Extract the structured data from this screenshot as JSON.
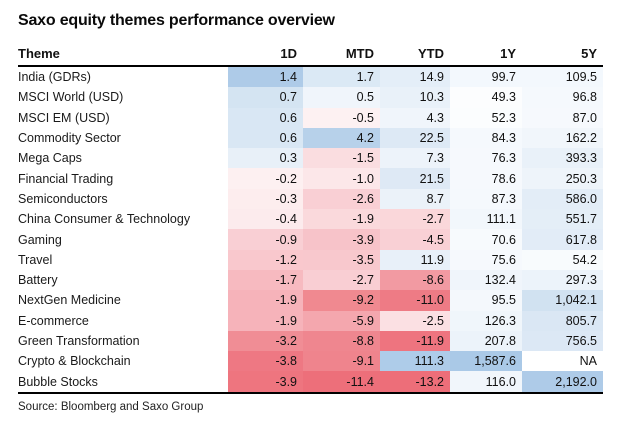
{
  "title": "Saxo equity themes performance overview",
  "source": "Source: Bloomberg and Saxo Group",
  "heatmap_colors": {
    "max_positive": "#aecbe8",
    "max_negative": "#ed6e79",
    "neutral": "#ffffff"
  },
  "table": {
    "header": [
      "Theme",
      "1D",
      "MTD",
      "YTD",
      "1Y",
      "5Y"
    ],
    "rows": [
      {
        "theme": "India (GDRs)",
        "values": [
          "1.4",
          "1.7",
          "14.9",
          "99.7",
          "109.5"
        ],
        "colors": [
          "#aecbe8",
          "#dbe9f5",
          "#e4eef8",
          "#f3f8fd",
          "#f3f8fd"
        ]
      },
      {
        "theme": "MSCI World (USD)",
        "values": [
          "0.7",
          "0.5",
          "10.3",
          "49.3",
          "96.8"
        ],
        "colors": [
          "#d4e4f2",
          "#f0f5fb",
          "#e9f1f9",
          "#fcfdfe",
          "#f5f9fd"
        ]
      },
      {
        "theme": "MSCI EM (USD)",
        "values": [
          "0.6",
          "-0.5",
          "4.3",
          "52.3",
          "87.0"
        ],
        "colors": [
          "#d9e7f4",
          "#fdf1f2",
          "#f0f5fb",
          "#fbfdfe",
          "#f6f9fd"
        ]
      },
      {
        "theme": "Commodity Sector",
        "values": [
          "0.6",
          "4.2",
          "22.5",
          "84.3",
          "162.2"
        ],
        "colors": [
          "#d9e7f4",
          "#b7d1ea",
          "#dde9f5",
          "#f5f9fd",
          "#f1f6fb"
        ]
      },
      {
        "theme": "Mega Caps",
        "values": [
          "0.3",
          "-1.5",
          "7.3",
          "76.3",
          "393.3"
        ],
        "colors": [
          "#e8f0f8",
          "#fadde0",
          "#edf3fa",
          "#f6f9fd",
          "#e9f1f9"
        ]
      },
      {
        "theme": "Financial Trading",
        "values": [
          "-0.2",
          "-1.0",
          "21.5",
          "78.6",
          "250.3"
        ],
        "colors": [
          "#fdf0f1",
          "#fce7e9",
          "#dee9f5",
          "#f6f9fd",
          "#eef4fa"
        ]
      },
      {
        "theme": "Semiconductors",
        "values": [
          "-0.3",
          "-2.6",
          "8.7",
          "87.3",
          "586.0"
        ],
        "colors": [
          "#fdedee",
          "#f9cfd4",
          "#ebf2f9",
          "#f5f9fd",
          "#e3edf7"
        ]
      },
      {
        "theme": "China Consumer & Technology",
        "values": [
          "-0.4",
          "-1.9",
          "-2.7",
          "111.1",
          "551.7"
        ],
        "colors": [
          "#fcebed",
          "#fad9dc",
          "#fad7da",
          "#f2f7fc",
          "#e4eef7"
        ]
      },
      {
        "theme": "Gaming",
        "values": [
          "-0.9",
          "-3.9",
          "-4.5",
          "70.6",
          "617.8"
        ],
        "colors": [
          "#f9cfd4",
          "#f7c3c9",
          "#f9d0d5",
          "#f7fafd",
          "#e2ecf7"
        ]
      },
      {
        "theme": "Travel",
        "values": [
          "-1.2",
          "-3.5",
          "11.9",
          "75.6",
          "54.2"
        ],
        "colors": [
          "#f9c8cd",
          "#f8c8cd",
          "#e8f0f9",
          "#f6f9fd",
          "#f8fbfd"
        ]
      },
      {
        "theme": "Battery",
        "values": [
          "-1.7",
          "-2.7",
          "-8.6",
          "132.4",
          "297.3"
        ],
        "colors": [
          "#f7bac0",
          "#f9ced3",
          "#f29aa2",
          "#f0f5fb",
          "#ecf3fa"
        ]
      },
      {
        "theme": "NextGen Medicine",
        "values": [
          "-1.9",
          "-9.2",
          "-11.0",
          "95.5",
          "1,042.1"
        ],
        "colors": [
          "#f6b3ba",
          "#f08990",
          "#ee7b85",
          "#f4f8fc",
          "#d1e2f1"
        ]
      },
      {
        "theme": "E-commerce",
        "values": [
          "-1.9",
          "-5.9",
          "-2.5",
          "126.3",
          "805.7"
        ],
        "colors": [
          "#f6b3ba",
          "#f4a7ae",
          "#fbe0e3",
          "#f0f6fb",
          "#dae7f4"
        ]
      },
      {
        "theme": "Green Transformation",
        "values": [
          "-3.2",
          "-8.8",
          "-11.9",
          "207.8",
          "756.5"
        ],
        "colors": [
          "#f08d95",
          "#ef868f",
          "#ee747f",
          "#ecf3fa",
          "#dce8f5"
        ]
      },
      {
        "theme": "Crypto & Blockchain",
        "values": [
          "-3.8",
          "-9.1",
          "111.3",
          "1,587.6",
          "NA"
        ],
        "colors": [
          "#ee7883",
          "#ef848d",
          "#aecce9",
          "#aac9e7",
          "#ffffff"
        ]
      },
      {
        "theme": "Bubble Stocks",
        "values": [
          "-3.9",
          "-11.4",
          "-13.2",
          "116.0",
          "2,192.0"
        ],
        "colors": [
          "#ee757f",
          "#ed6f7a",
          "#ed6e79",
          "#f1f6fb",
          "#aecbe8"
        ]
      }
    ]
  },
  "chart_data": {
    "type": "heatmap",
    "title": "Saxo equity themes performance overview",
    "columns": [
      "1D",
      "MTD",
      "YTD",
      "1Y",
      "5Y"
    ],
    "rows": [
      "India (GDRs)",
      "MSCI World (USD)",
      "MSCI EM (USD)",
      "Commodity Sector",
      "Mega Caps",
      "Financial Trading",
      "Semiconductors",
      "China Consumer & Technology",
      "Gaming",
      "Travel",
      "Battery",
      "NextGen Medicine",
      "E-commerce",
      "Green Transformation",
      "Crypto & Blockchain",
      "Bubble Stocks"
    ],
    "values": [
      [
        1.4,
        1.7,
        14.9,
        99.7,
        109.5
      ],
      [
        0.7,
        0.5,
        10.3,
        49.3,
        96.8
      ],
      [
        0.6,
        -0.5,
        4.3,
        52.3,
        87.0
      ],
      [
        0.6,
        4.2,
        22.5,
        84.3,
        162.2
      ],
      [
        0.3,
        -1.5,
        7.3,
        76.3,
        393.3
      ],
      [
        -0.2,
        -1.0,
        21.5,
        78.6,
        250.3
      ],
      [
        -0.3,
        -2.6,
        8.7,
        87.3,
        586.0
      ],
      [
        -0.4,
        -1.9,
        -2.7,
        111.1,
        551.7
      ],
      [
        -0.9,
        -3.9,
        -4.5,
        70.6,
        617.8
      ],
      [
        -1.2,
        -3.5,
        11.9,
        75.6,
        54.2
      ],
      [
        -1.7,
        -2.7,
        -8.6,
        132.4,
        297.3
      ],
      [
        -1.9,
        -9.2,
        -11.0,
        95.5,
        1042.1
      ],
      [
        -1.9,
        -5.9,
        -2.5,
        126.3,
        805.7
      ],
      [
        -3.2,
        -8.8,
        -11.9,
        207.8,
        756.5
      ],
      [
        -3.8,
        -9.1,
        111.3,
        1587.6,
        null
      ],
      [
        -3.9,
        -11.4,
        -13.2,
        116.0,
        2192.0
      ]
    ],
    "na_label": "NA",
    "legend": "blue = positive performance, red = negative performance, intensity scaled per column",
    "source": "Source: Bloomberg and Saxo Group"
  }
}
